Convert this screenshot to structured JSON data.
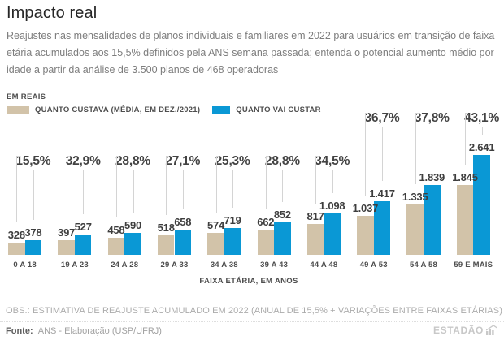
{
  "header": {
    "title": "Impacto real",
    "subtitle": "Reajustes nas mensalidades de planos individuais e familiares em 2022 para usuários em transição de faixa etária acumulados aos 15,5% definidos pela ANS semana passada; entenda o potencial aumento médio por idade a partir da análise de 3.500 planos de 468 operadoras"
  },
  "legend": {
    "units_label": "EM REAIS",
    "items": [
      {
        "label": "QUANTO CUSTAVA (MÉDIA, EM DEZ./2021)",
        "color": "#d2c3a9"
      },
      {
        "label": "QUANTO VAI CUSTAR",
        "color": "#0a98d5"
      }
    ]
  },
  "chart_data": {
    "type": "bar",
    "title": "Impacto real",
    "categories": [
      "0 A 18",
      "19 A 23",
      "24 A 28",
      "29 A 33",
      "34 A 38",
      "39 A 43",
      "44 A 48",
      "49 A 53",
      "54 A 58",
      "59 E MAIS"
    ],
    "series": [
      {
        "name": "QUANTO CUSTAVA (MÉDIA, EM DEZ./2021)",
        "color": "#d2c3a9",
        "values": [
          328,
          397,
          458,
          518,
          574,
          662,
          817,
          1037,
          1335,
          1845
        ]
      },
      {
        "name": "QUANTO VAI CUSTAR",
        "color": "#0a98d5",
        "values": [
          378,
          527,
          590,
          658,
          719,
          852,
          1098,
          1417,
          1839,
          2641
        ]
      }
    ],
    "value_labels": [
      [
        "328",
        "378"
      ],
      [
        "397",
        "527"
      ],
      [
        "458",
        "590"
      ],
      [
        "518",
        "658"
      ],
      [
        "574",
        "719"
      ],
      [
        "662",
        "852"
      ],
      [
        "817",
        "1.098"
      ],
      [
        "1.037",
        "1.417"
      ],
      [
        "1.335",
        "1.839"
      ],
      [
        "1.845",
        "2.641"
      ]
    ],
    "pct_labels": [
      "15,5%",
      "32,9%",
      "28,8%",
      "27,1%",
      "25,3%",
      "28,8%",
      "34,5%",
      "36,7%",
      "37,8%",
      "43,1%"
    ],
    "pct_raised": [
      false,
      false,
      false,
      false,
      false,
      false,
      false,
      true,
      true,
      true
    ],
    "xlabel": "FAIXA ETÁRIA, EM ANOS",
    "ylabel": "EM REAIS",
    "ylim": [
      0,
      2641
    ],
    "grid": false,
    "legend_position": "top"
  },
  "footer": {
    "obs": "OBS.: ESTIMATIVA DE REAJUSTE ACUMULADO EM 2022 (ANUAL DE 15,5% + VARIAÇÕES ENTRE FAIXAS ETÁRIAS)",
    "source_label": "Fonte:",
    "source_value": "ANS - Elaboração (USP/UFRJ)",
    "logo_text": "ESTADÃO"
  },
  "colors": {
    "bar_tan": "#d2c3a9",
    "bar_blue": "#0a98d5",
    "connector": "#d4d4d4"
  }
}
